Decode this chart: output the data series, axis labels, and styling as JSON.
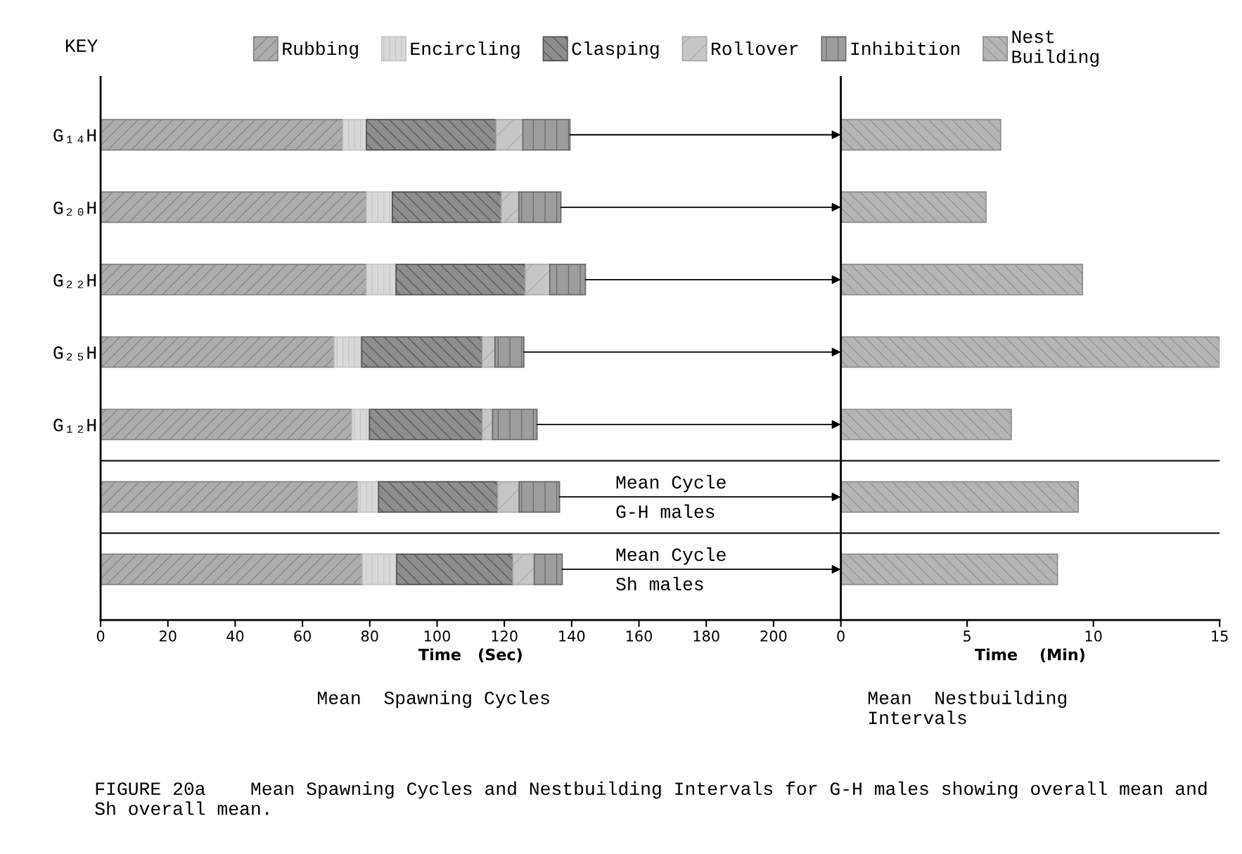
{
  "chart_data": [
    {
      "type": "bar",
      "orientation": "horizontal",
      "stacked": true,
      "title": "Mean  Spawning Cycles",
      "xlabel": "Time   (Sec)",
      "legend_title": "KEY",
      "legend": "top",
      "categories": [
        "G₁₄H",
        "G₂₀H",
        "G₂₂H",
        "G₂₅H",
        "G₁₂H",
        null,
        null
      ],
      "series": [
        {
          "name": "Rubbing",
          "color": "#808080",
          "values": [
            72,
            79,
            79,
            69.4,
            74.7,
            76.5,
            77.8
          ]
        },
        {
          "name": "Encircling",
          "color": "#c4c4c4",
          "values": [
            7,
            7.7,
            8.8,
            8.2,
            5.2,
            6.1,
            10.2
          ]
        },
        {
          "name": "Clasping",
          "color": "#505050",
          "values": [
            38.5,
            32.4,
            38.4,
            35.8,
            33.5,
            35.4,
            34.5
          ]
        },
        {
          "name": "Rollover",
          "color": "#a8a8a8",
          "values": [
            8,
            5.2,
            7.3,
            3.8,
            3.1,
            6.4,
            6.4
          ]
        },
        {
          "name": "Inhibition",
          "color": "#686868",
          "values": [
            14,
            12.5,
            10.6,
            8.6,
            13.2,
            12,
            8.3
          ]
        }
      ],
      "xlim": [
        0,
        220
      ],
      "xticks": [
        0,
        20,
        40,
        60,
        80,
        100,
        120,
        140,
        160,
        180,
        200
      ],
      "annotations": [
        "Mean Cycle\nG-H males",
        "Mean Cycle\nSh males",
        "FIGURE 20a    Mean Spawning Cycles and Nestbuilding Intervals for G-H males showing overall mean and Sh overall mean."
      ]
    },
    {
      "type": "bar",
      "orientation": "horizontal",
      "title": "Mean  Nestbuilding\nIntervals",
      "xlabel": "Time    (Min)",
      "legend": "top",
      "categories": [
        null,
        null,
        null,
        null,
        null,
        null,
        null
      ],
      "series": [
        {
          "name": "Nest\nBuilding",
          "color": "#8c8c8c",
          "values": [
            6.33,
            5.75,
            9.57,
            15,
            6.75,
            9.4,
            8.58
          ]
        }
      ],
      "xlim": [
        0,
        15
      ],
      "xticks": [
        0,
        5,
        10,
        15
      ]
    }
  ]
}
